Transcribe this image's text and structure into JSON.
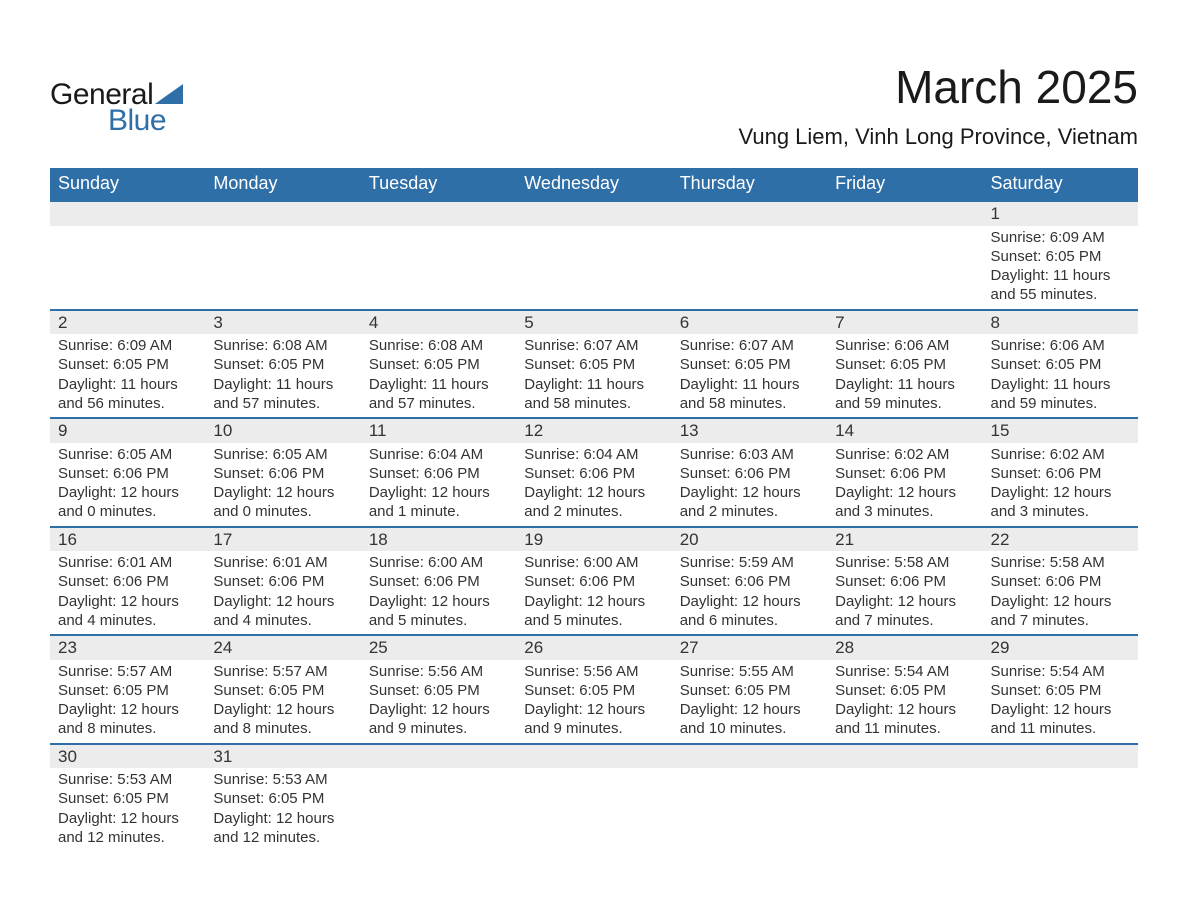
{
  "logo": {
    "text1": "General",
    "text2": "Blue",
    "shape_color": "#2f6fa8"
  },
  "title": "March 2025",
  "location": "Vung Liem, Vinh Long Province, Vietnam",
  "colors": {
    "header_bg": "#2f6fa8",
    "header_text": "#ffffff",
    "daynum_bg": "#ececec",
    "row_border": "#2f6fa8",
    "body_text": "#333333",
    "page_bg": "#ffffff"
  },
  "typography": {
    "title_fontsize": 46,
    "location_fontsize": 22,
    "weekday_fontsize": 18,
    "daynum_fontsize": 17,
    "detail_fontsize": 15,
    "font_family": "Arial"
  },
  "weekdays": [
    "Sunday",
    "Monday",
    "Tuesday",
    "Wednesday",
    "Thursday",
    "Friday",
    "Saturday"
  ],
  "weeks": [
    [
      null,
      null,
      null,
      null,
      null,
      null,
      {
        "day": "1",
        "sunrise": "Sunrise: 6:09 AM",
        "sunset": "Sunset: 6:05 PM",
        "daylight1": "Daylight: 11 hours",
        "daylight2": "and 55 minutes."
      }
    ],
    [
      {
        "day": "2",
        "sunrise": "Sunrise: 6:09 AM",
        "sunset": "Sunset: 6:05 PM",
        "daylight1": "Daylight: 11 hours",
        "daylight2": "and 56 minutes."
      },
      {
        "day": "3",
        "sunrise": "Sunrise: 6:08 AM",
        "sunset": "Sunset: 6:05 PM",
        "daylight1": "Daylight: 11 hours",
        "daylight2": "and 57 minutes."
      },
      {
        "day": "4",
        "sunrise": "Sunrise: 6:08 AM",
        "sunset": "Sunset: 6:05 PM",
        "daylight1": "Daylight: 11 hours",
        "daylight2": "and 57 minutes."
      },
      {
        "day": "5",
        "sunrise": "Sunrise: 6:07 AM",
        "sunset": "Sunset: 6:05 PM",
        "daylight1": "Daylight: 11 hours",
        "daylight2": "and 58 minutes."
      },
      {
        "day": "6",
        "sunrise": "Sunrise: 6:07 AM",
        "sunset": "Sunset: 6:05 PM",
        "daylight1": "Daylight: 11 hours",
        "daylight2": "and 58 minutes."
      },
      {
        "day": "7",
        "sunrise": "Sunrise: 6:06 AM",
        "sunset": "Sunset: 6:05 PM",
        "daylight1": "Daylight: 11 hours",
        "daylight2": "and 59 minutes."
      },
      {
        "day": "8",
        "sunrise": "Sunrise: 6:06 AM",
        "sunset": "Sunset: 6:05 PM",
        "daylight1": "Daylight: 11 hours",
        "daylight2": "and 59 minutes."
      }
    ],
    [
      {
        "day": "9",
        "sunrise": "Sunrise: 6:05 AM",
        "sunset": "Sunset: 6:06 PM",
        "daylight1": "Daylight: 12 hours",
        "daylight2": "and 0 minutes."
      },
      {
        "day": "10",
        "sunrise": "Sunrise: 6:05 AM",
        "sunset": "Sunset: 6:06 PM",
        "daylight1": "Daylight: 12 hours",
        "daylight2": "and 0 minutes."
      },
      {
        "day": "11",
        "sunrise": "Sunrise: 6:04 AM",
        "sunset": "Sunset: 6:06 PM",
        "daylight1": "Daylight: 12 hours",
        "daylight2": "and 1 minute."
      },
      {
        "day": "12",
        "sunrise": "Sunrise: 6:04 AM",
        "sunset": "Sunset: 6:06 PM",
        "daylight1": "Daylight: 12 hours",
        "daylight2": "and 2 minutes."
      },
      {
        "day": "13",
        "sunrise": "Sunrise: 6:03 AM",
        "sunset": "Sunset: 6:06 PM",
        "daylight1": "Daylight: 12 hours",
        "daylight2": "and 2 minutes."
      },
      {
        "day": "14",
        "sunrise": "Sunrise: 6:02 AM",
        "sunset": "Sunset: 6:06 PM",
        "daylight1": "Daylight: 12 hours",
        "daylight2": "and 3 minutes."
      },
      {
        "day": "15",
        "sunrise": "Sunrise: 6:02 AM",
        "sunset": "Sunset: 6:06 PM",
        "daylight1": "Daylight: 12 hours",
        "daylight2": "and 3 minutes."
      }
    ],
    [
      {
        "day": "16",
        "sunrise": "Sunrise: 6:01 AM",
        "sunset": "Sunset: 6:06 PM",
        "daylight1": "Daylight: 12 hours",
        "daylight2": "and 4 minutes."
      },
      {
        "day": "17",
        "sunrise": "Sunrise: 6:01 AM",
        "sunset": "Sunset: 6:06 PM",
        "daylight1": "Daylight: 12 hours",
        "daylight2": "and 4 minutes."
      },
      {
        "day": "18",
        "sunrise": "Sunrise: 6:00 AM",
        "sunset": "Sunset: 6:06 PM",
        "daylight1": "Daylight: 12 hours",
        "daylight2": "and 5 minutes."
      },
      {
        "day": "19",
        "sunrise": "Sunrise: 6:00 AM",
        "sunset": "Sunset: 6:06 PM",
        "daylight1": "Daylight: 12 hours",
        "daylight2": "and 5 minutes."
      },
      {
        "day": "20",
        "sunrise": "Sunrise: 5:59 AM",
        "sunset": "Sunset: 6:06 PM",
        "daylight1": "Daylight: 12 hours",
        "daylight2": "and 6 minutes."
      },
      {
        "day": "21",
        "sunrise": "Sunrise: 5:58 AM",
        "sunset": "Sunset: 6:06 PM",
        "daylight1": "Daylight: 12 hours",
        "daylight2": "and 7 minutes."
      },
      {
        "day": "22",
        "sunrise": "Sunrise: 5:58 AM",
        "sunset": "Sunset: 6:06 PM",
        "daylight1": "Daylight: 12 hours",
        "daylight2": "and 7 minutes."
      }
    ],
    [
      {
        "day": "23",
        "sunrise": "Sunrise: 5:57 AM",
        "sunset": "Sunset: 6:05 PM",
        "daylight1": "Daylight: 12 hours",
        "daylight2": "and 8 minutes."
      },
      {
        "day": "24",
        "sunrise": "Sunrise: 5:57 AM",
        "sunset": "Sunset: 6:05 PM",
        "daylight1": "Daylight: 12 hours",
        "daylight2": "and 8 minutes."
      },
      {
        "day": "25",
        "sunrise": "Sunrise: 5:56 AM",
        "sunset": "Sunset: 6:05 PM",
        "daylight1": "Daylight: 12 hours",
        "daylight2": "and 9 minutes."
      },
      {
        "day": "26",
        "sunrise": "Sunrise: 5:56 AM",
        "sunset": "Sunset: 6:05 PM",
        "daylight1": "Daylight: 12 hours",
        "daylight2": "and 9 minutes."
      },
      {
        "day": "27",
        "sunrise": "Sunrise: 5:55 AM",
        "sunset": "Sunset: 6:05 PM",
        "daylight1": "Daylight: 12 hours",
        "daylight2": "and 10 minutes."
      },
      {
        "day": "28",
        "sunrise": "Sunrise: 5:54 AM",
        "sunset": "Sunset: 6:05 PM",
        "daylight1": "Daylight: 12 hours",
        "daylight2": "and 11 minutes."
      },
      {
        "day": "29",
        "sunrise": "Sunrise: 5:54 AM",
        "sunset": "Sunset: 6:05 PM",
        "daylight1": "Daylight: 12 hours",
        "daylight2": "and 11 minutes."
      }
    ],
    [
      {
        "day": "30",
        "sunrise": "Sunrise: 5:53 AM",
        "sunset": "Sunset: 6:05 PM",
        "daylight1": "Daylight: 12 hours",
        "daylight2": "and 12 minutes."
      },
      {
        "day": "31",
        "sunrise": "Sunrise: 5:53 AM",
        "sunset": "Sunset: 6:05 PM",
        "daylight1": "Daylight: 12 hours",
        "daylight2": "and 12 minutes."
      },
      null,
      null,
      null,
      null,
      null
    ]
  ]
}
